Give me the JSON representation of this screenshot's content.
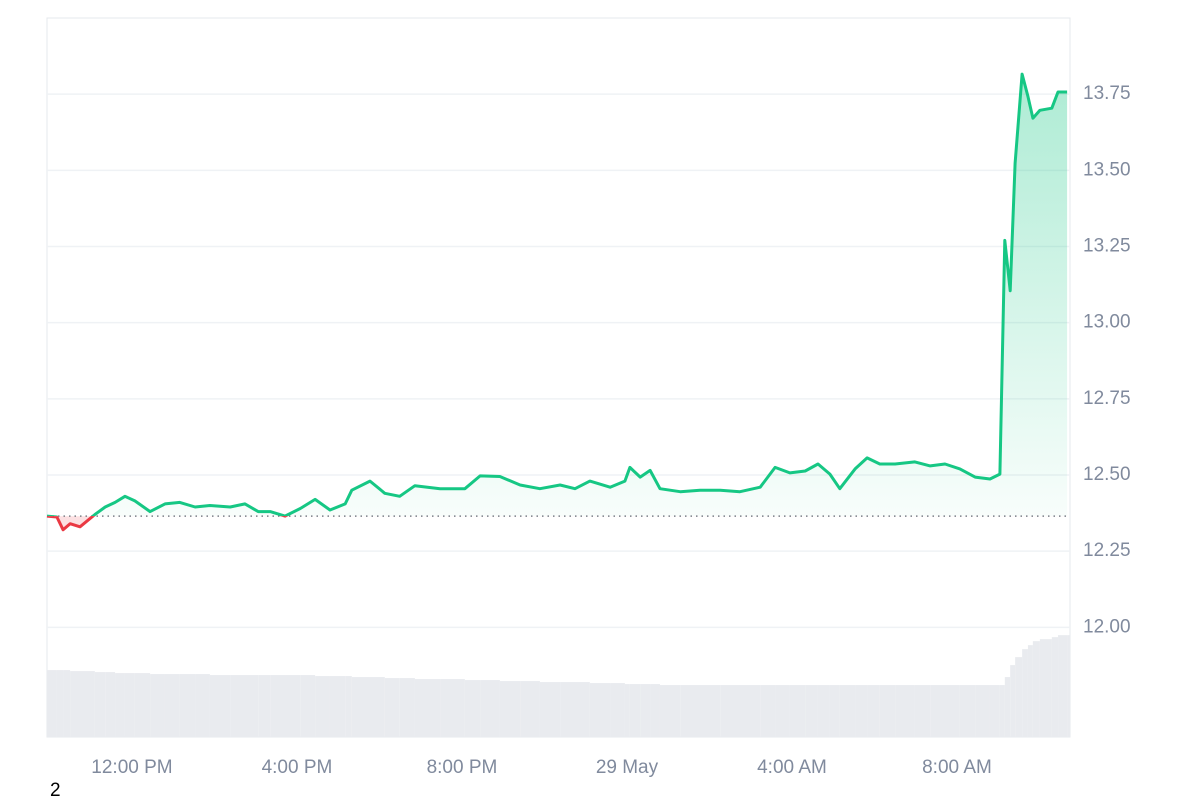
{
  "chart_data": {
    "type": "line",
    "footer_note": "2",
    "colors": {
      "up": "#16c784",
      "down": "#ea3943",
      "volume": "#e9ebef",
      "grid": "#eff2f5"
    },
    "baseline": 12.365,
    "xlim": [
      9.94,
      34.74
    ],
    "xticks": [
      {
        "value": 12,
        "label": "12:00 PM"
      },
      {
        "value": 16,
        "label": "4:00 PM"
      },
      {
        "value": 20,
        "label": "8:00 PM"
      },
      {
        "value": 24,
        "label": "29 May"
      },
      {
        "value": 28,
        "label": "4:00 AM"
      },
      {
        "value": 32,
        "label": "8:00 AM"
      }
    ],
    "ylim": [
      11.64,
      14.0
    ],
    "yticks": [
      {
        "value": 12,
        "label": "12.00"
      },
      12.25,
      {
        "value": 12.5,
        "label": "12.50"
      },
      12.75,
      {
        "value": 13,
        "label": "13.00"
      },
      13.25,
      {
        "value": 13.5,
        "label": "13.50"
      },
      13.75
    ],
    "grid": true,
    "x": [
      9.94,
      10.18,
      10.33,
      10.5,
      10.74,
      11.1,
      11.35,
      11.59,
      11.83,
      12.07,
      12.44,
      12.8,
      13.16,
      13.53,
      13.89,
      14.38,
      14.74,
      15.06,
      15.35,
      15.71,
      16.08,
      16.44,
      16.8,
      17.17,
      17.33,
      17.77,
      18.13,
      18.49,
      18.86,
      19.47,
      20.07,
      20.44,
      20.92,
      21.41,
      21.89,
      22.38,
      22.74,
      23.1,
      23.59,
      23.95,
      24.07,
      24.32,
      24.56,
      24.8,
      25.29,
      25.77,
      26.26,
      26.74,
      27.23,
      27.59,
      27.95,
      28.32,
      28.63,
      28.92,
      29.16,
      29.53,
      29.82,
      30.13,
      30.5,
      30.98,
      31.35,
      31.71,
      32.07,
      32.44,
      32.8,
      33.04,
      33.16,
      33.29,
      33.41,
      33.58,
      33.72,
      33.84,
      34.01,
      34.3,
      34.45,
      34.67
    ],
    "values": [
      12.365,
      12.362,
      12.32,
      12.34,
      12.33,
      12.37,
      12.395,
      12.41,
      12.43,
      12.415,
      12.38,
      12.405,
      12.41,
      12.395,
      12.4,
      12.395,
      12.405,
      12.38,
      12.38,
      12.365,
      12.39,
      12.42,
      12.385,
      12.405,
      12.45,
      12.48,
      12.44,
      12.43,
      12.465,
      12.455,
      12.455,
      12.497,
      12.495,
      12.467,
      12.455,
      12.467,
      12.455,
      12.48,
      12.46,
      12.48,
      12.525,
      12.493,
      12.515,
      12.455,
      12.445,
      12.45,
      12.45,
      12.445,
      12.46,
      12.525,
      12.507,
      12.513,
      12.536,
      12.503,
      12.455,
      12.52,
      12.556,
      12.536,
      12.536,
      12.543,
      12.53,
      12.536,
      12.52,
      12.493,
      12.487,
      12.503,
      13.27,
      13.105,
      13.523,
      13.816,
      13.743,
      13.671,
      13.697,
      13.704,
      13.757,
      13.757
    ],
    "volume_lim": [
      0,
      720
    ],
    "volume": [
      67,
      67,
      67,
      66,
      66,
      65,
      65,
      64,
      64,
      64,
      63,
      63,
      63,
      63,
      62,
      62,
      62,
      62,
      62,
      62,
      62,
      61,
      61,
      61,
      60,
      60,
      59,
      59,
      58,
      58,
      57,
      57,
      56,
      56,
      55,
      55,
      55,
      54,
      54,
      53,
      53,
      53,
      53,
      52,
      52,
      52,
      52,
      52,
      52,
      52,
      52,
      52,
      52,
      52,
      52,
      52,
      52,
      52,
      52,
      52,
      52,
      52,
      52,
      52,
      52,
      52,
      60,
      72,
      80,
      88,
      92,
      96,
      98,
      100,
      102,
      102
    ]
  }
}
